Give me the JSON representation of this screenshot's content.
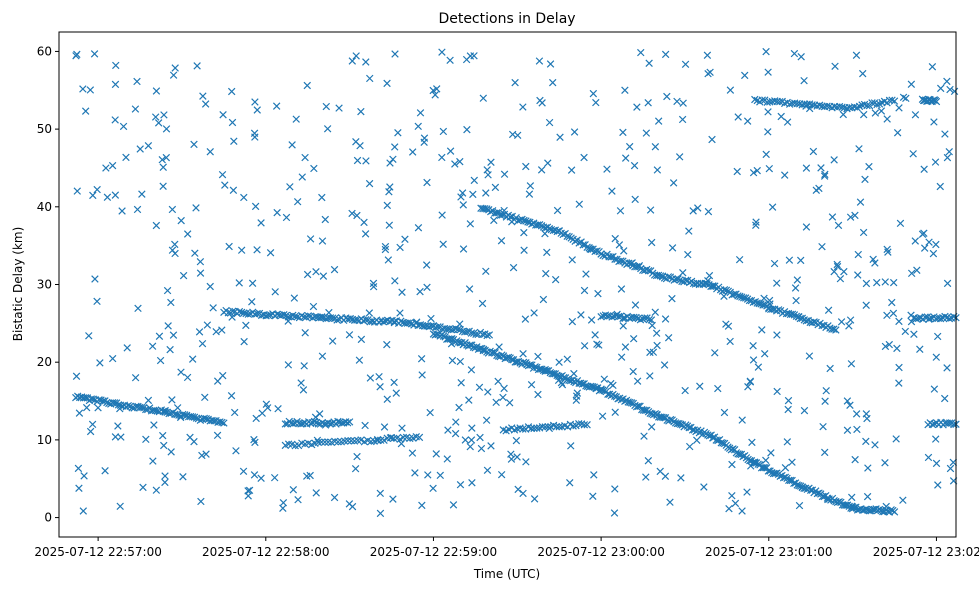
{
  "chart_data": {
    "type": "scatter",
    "title": "Detections in Delay",
    "xlabel": "Time (UTC)",
    "ylabel": "Bistatic Delay (km)",
    "marker": "x",
    "marker_color": "#1f77b4",
    "grid": false,
    "legend": "none",
    "x_unit": "seconds",
    "xlim": [
      "2025-07-12 22:56:46",
      "2025-07-12 23:02:07"
    ],
    "ylim": [
      -2.5,
      62.5
    ],
    "xticks": [
      {
        "t": "2025-07-12 22:57:00",
        "label": "2025-07-12 22:57:00"
      },
      {
        "t": "2025-07-12 22:58:00",
        "label": "2025-07-12 22:58:00"
      },
      {
        "t": "2025-07-12 22:59:00",
        "label": "2025-07-12 22:59:00"
      },
      {
        "t": "2025-07-12 23:00:00",
        "label": "2025-07-12 23:00:00"
      },
      {
        "t": "2025-07-12 23:01:00",
        "label": "2025-07-12 23:01:00"
      },
      {
        "t": "2025-07-12 23:02:00",
        "label": "2025-07-12 23:02:00"
      }
    ],
    "yticks": [
      0,
      10,
      20,
      30,
      40,
      50,
      60
    ],
    "tracks": [
      {
        "segments": [
          [
            "2025-07-12 22:56:52",
            15.5
          ],
          [
            "2025-07-12 22:57:24",
            13.6
          ],
          [
            "2025-07-12 22:57:45",
            12.1
          ]
        ],
        "step_s": 0.7
      },
      {
        "segments": [
          [
            "2025-07-12 22:57:45",
            26.5
          ],
          [
            "2025-07-12 22:58:20",
            25.7
          ],
          [
            "2025-07-12 22:58:46",
            25.2
          ],
          [
            "2025-07-12 22:59:00",
            24.6
          ],
          [
            "2025-07-12 22:59:20",
            23.5
          ]
        ],
        "step_s": 0.8
      },
      {
        "segments": [
          [
            "2025-07-12 22:58:07",
            12.2
          ],
          [
            "2025-07-12 22:58:30",
            12.2
          ]
        ],
        "step_s": 0.7
      },
      {
        "segments": [
          [
            "2025-07-12 22:58:07",
            9.3
          ],
          [
            "2025-07-12 22:58:40",
            10.0
          ],
          [
            "2025-07-12 22:58:55",
            10.3
          ]
        ],
        "step_s": 1.2
      },
      {
        "segments": [
          [
            "2025-07-12 22:59:00",
            23.7
          ],
          [
            "2025-07-12 22:59:40",
            18.9
          ],
          [
            "2025-07-12 23:00:00",
            16.4
          ],
          [
            "2025-07-12 23:00:20",
            13.2
          ],
          [
            "2025-07-12 23:00:40",
            10.4
          ],
          [
            "2025-07-12 23:00:55",
            7.0
          ],
          [
            "2025-07-12 23:01:12",
            4.0
          ],
          [
            "2025-07-12 23:01:30",
            1.2
          ],
          [
            "2025-07-12 23:01:45",
            0.8
          ]
        ],
        "step_s": 0.6
      },
      {
        "segments": [
          [
            "2025-07-12 22:59:17",
            39.8
          ],
          [
            "2025-07-12 22:59:45",
            36.8
          ],
          [
            "2025-07-12 23:00:00",
            34.0
          ],
          [
            "2025-07-12 23:00:22",
            31.0
          ],
          [
            "2025-07-12 23:00:40",
            29.8
          ],
          [
            "2025-07-12 23:01:00",
            27.0
          ],
          [
            "2025-07-12 23:01:24",
            24.2
          ]
        ],
        "step_s": 0.7
      },
      {
        "segments": [
          [
            "2025-07-12 22:59:25",
            11.3
          ],
          [
            "2025-07-12 22:59:55",
            12.0
          ]
        ],
        "step_s": 1.0
      },
      {
        "segments": [
          [
            "2025-07-12 23:00:00",
            26.0
          ],
          [
            "2025-07-12 23:00:18",
            25.5
          ]
        ],
        "step_s": 0.8
      },
      {
        "segments": [
          [
            "2025-07-12 23:00:55",
            53.7
          ],
          [
            "2025-07-12 23:01:28",
            52.7
          ],
          [
            "2025-07-12 23:01:45",
            53.7
          ]
        ],
        "step_s": 0.9
      },
      {
        "segments": [
          [
            "2025-07-12 23:01:55",
            53.8
          ],
          [
            "2025-07-12 23:02:00",
            53.6
          ]
        ],
        "step_s": 0.4
      },
      {
        "segments": [
          [
            "2025-07-12 23:01:52",
            25.6
          ],
          [
            "2025-07-12 23:02:07",
            25.8
          ]
        ],
        "step_s": 0.8
      },
      {
        "segments": [
          [
            "2025-07-12 23:01:57",
            12.1
          ],
          [
            "2025-07-12 23:02:07",
            12.1
          ]
        ],
        "step_s": 0.8
      }
    ],
    "clutter": {
      "x_range": [
        "2025-07-12 22:56:52",
        "2025-07-12 23:02:07"
      ],
      "y_range": [
        0.5,
        60
      ],
      "count": 720,
      "seed": 1337
    }
  }
}
